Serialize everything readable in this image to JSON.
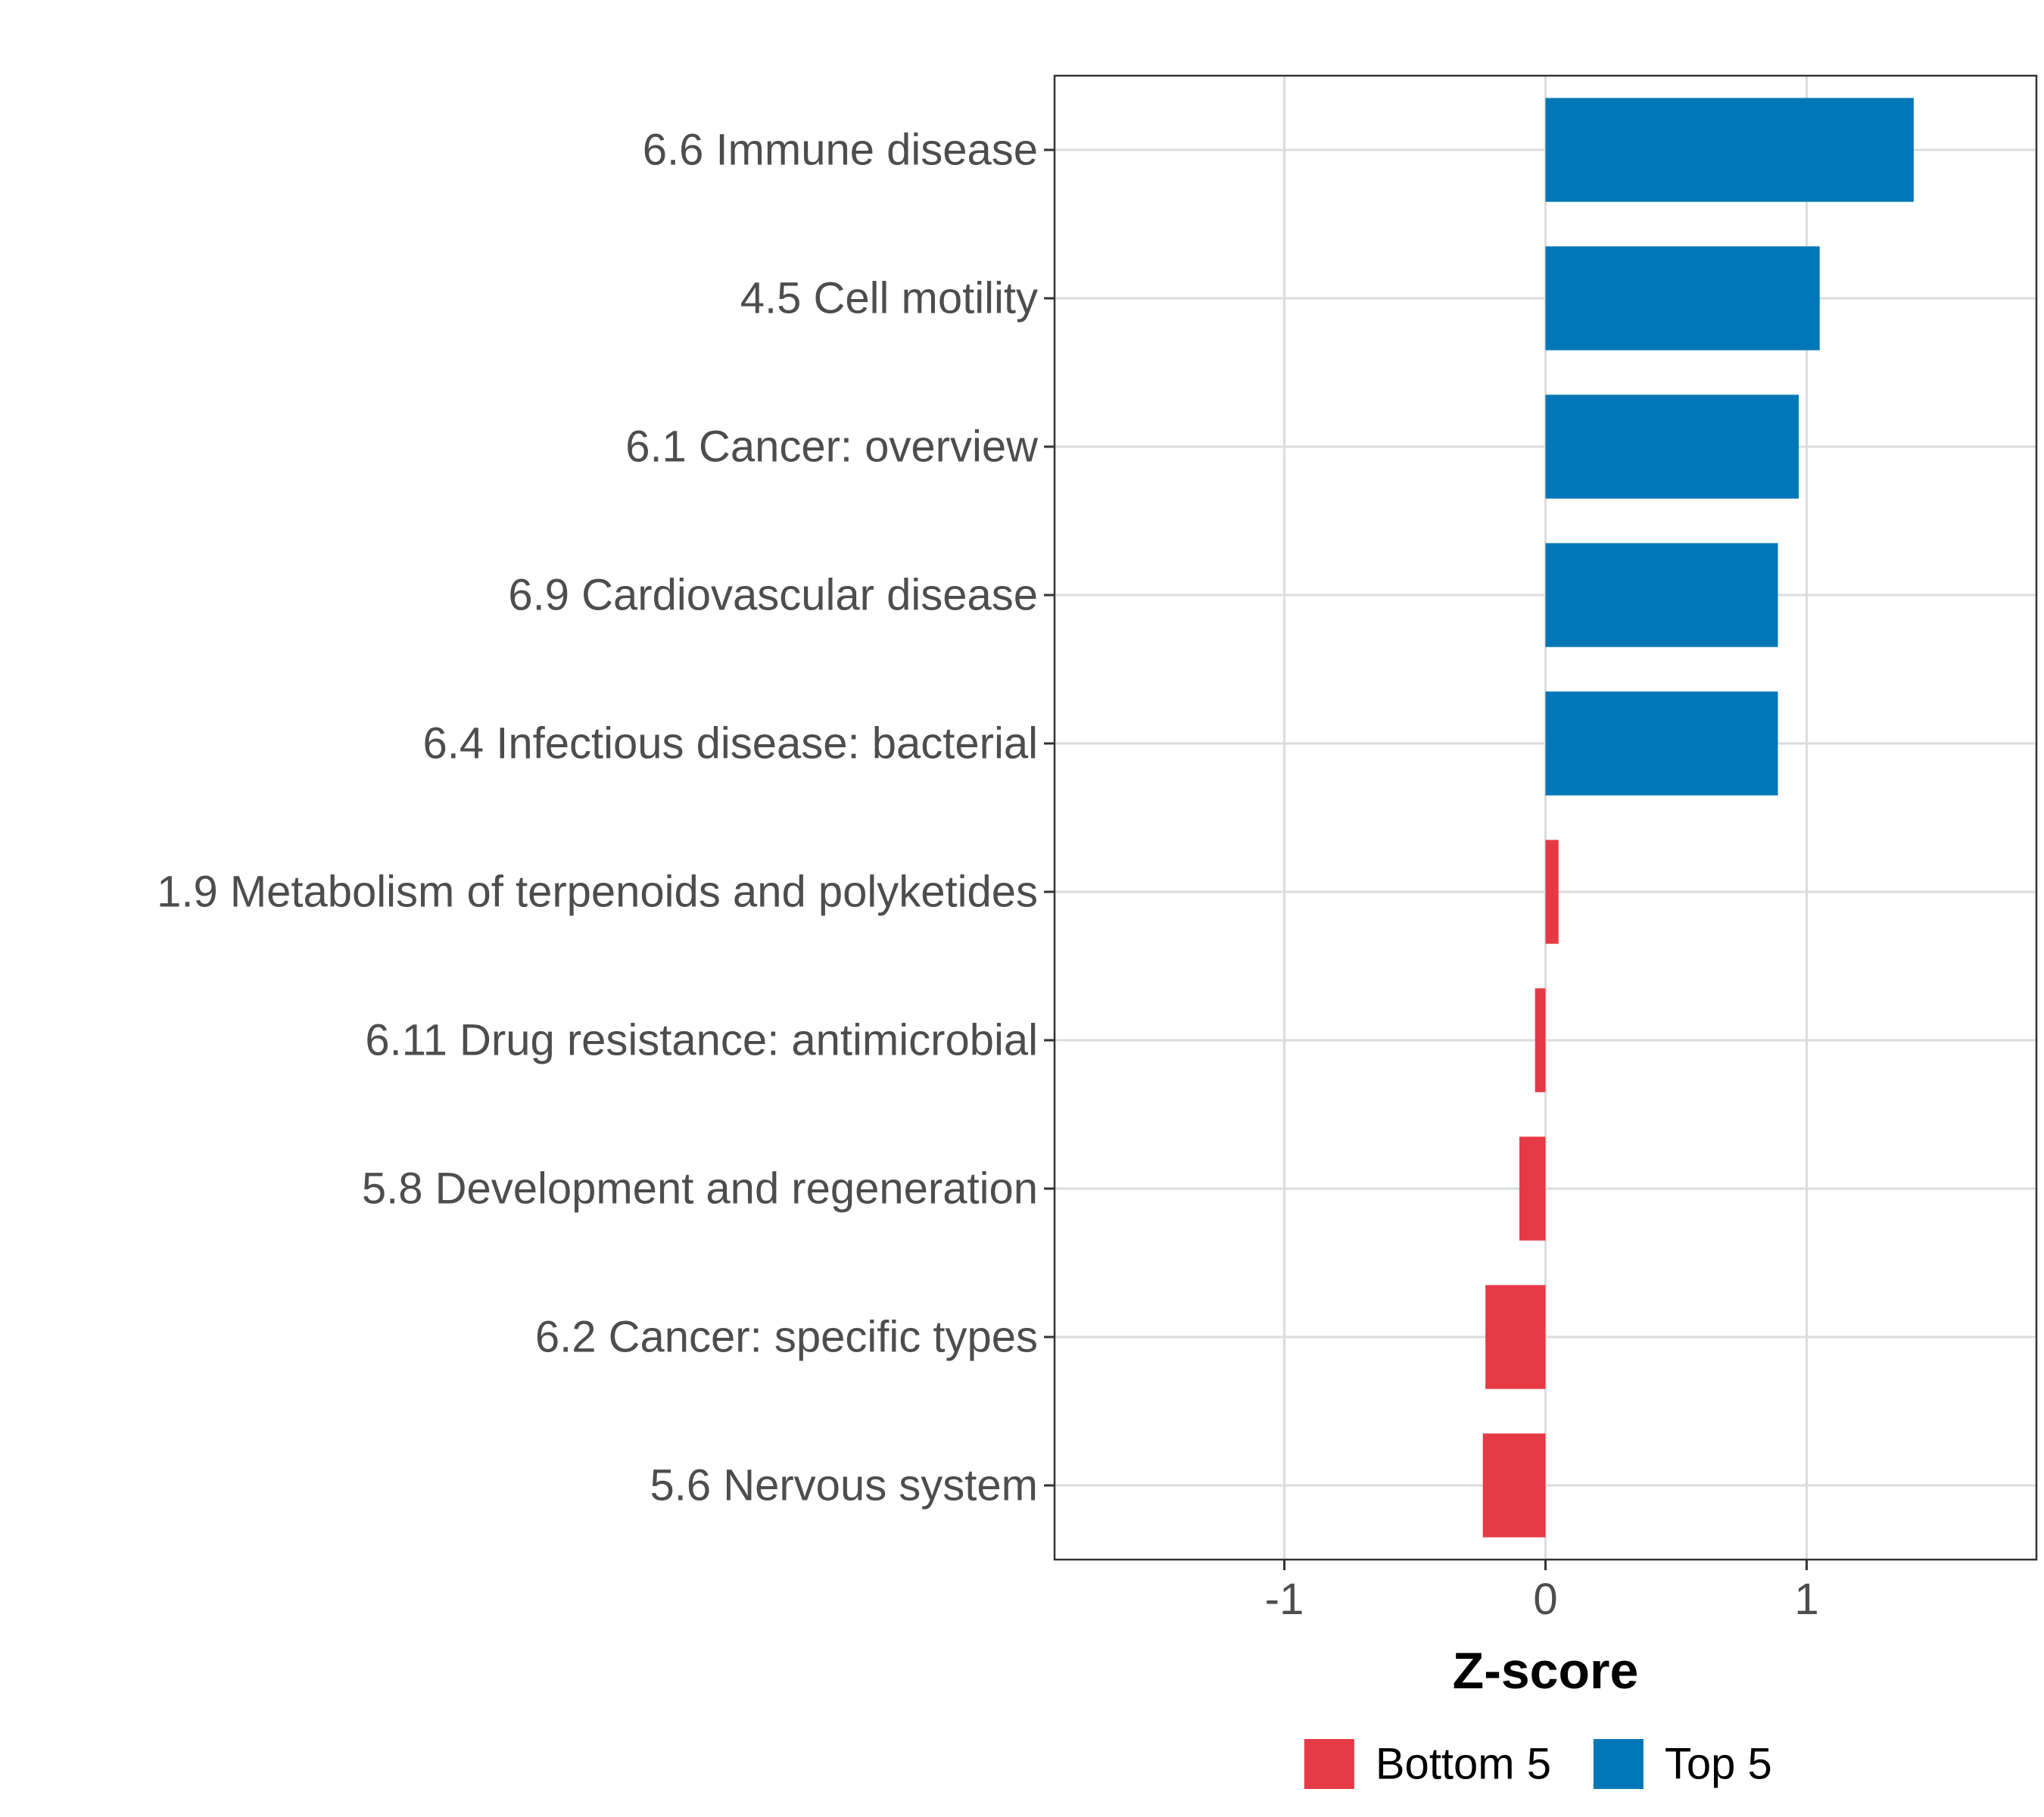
{
  "chart_data": {
    "type": "bar",
    "orientation": "horizontal",
    "title": "",
    "xlabel": "Z-score",
    "ylabel": "",
    "xlim": [
      -1.88,
      1.88
    ],
    "xticks": [
      -1,
      0,
      1
    ],
    "xtick_labels": [
      "-1",
      "0",
      "1"
    ],
    "grid": true,
    "legend_position": "bottom",
    "categories": [
      "6.6 Immune disease",
      "4.5 Cell motility",
      "6.1 Cancer: overview",
      "6.9 Cardiovascular disease",
      "6.4 Infectious disease: bacterial",
      "1.9 Metabolism of terpenoids and polyketides",
      "6.11 Drug resistance: antimicrobial",
      "5.8 Development and regeneration",
      "6.2 Cancer: specific types",
      "5.6 Nervous system"
    ],
    "values": [
      1.41,
      1.05,
      0.97,
      0.89,
      0.89,
      0.05,
      -0.04,
      -0.1,
      -0.23,
      -0.24
    ],
    "groups": [
      "Top 5",
      "Top 5",
      "Top 5",
      "Top 5",
      "Top 5",
      "Bottom 5",
      "Bottom 5",
      "Bottom 5",
      "Bottom 5",
      "Bottom 5"
    ],
    "legend": [
      {
        "name": "Bottom 5",
        "color": "#e63946"
      },
      {
        "name": "Top 5",
        "color": "#0077b6"
      }
    ]
  }
}
